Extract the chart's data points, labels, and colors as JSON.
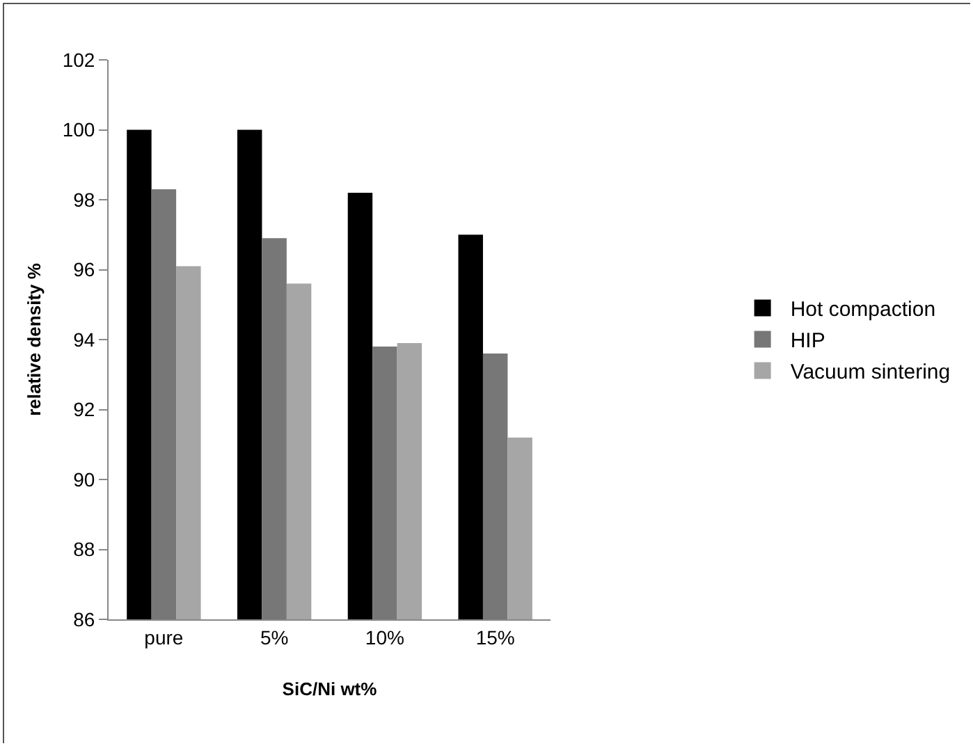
{
  "chart_data": {
    "type": "bar",
    "xlabel": "SiC/Ni wt%",
    "ylabel": "relative density %",
    "categories": [
      "pure",
      "5%",
      "10%",
      "15%"
    ],
    "series": [
      {
        "name": "Hot compaction",
        "color": "#000000",
        "values": [
          100,
          100,
          98.2,
          97.0
        ]
      },
      {
        "name": "HIP",
        "color": "#777777",
        "values": [
          98.3,
          96.9,
          93.8,
          93.6
        ]
      },
      {
        "name": "Vacuum sintering",
        "color": "#a6a6a6",
        "values": [
          96.1,
          95.6,
          93.9,
          91.2
        ]
      }
    ],
    "ylim": [
      86,
      102
    ],
    "yticks": [
      86,
      88,
      90,
      92,
      94,
      96,
      98,
      100,
      102
    ],
    "grid": false,
    "legend": "right"
  }
}
